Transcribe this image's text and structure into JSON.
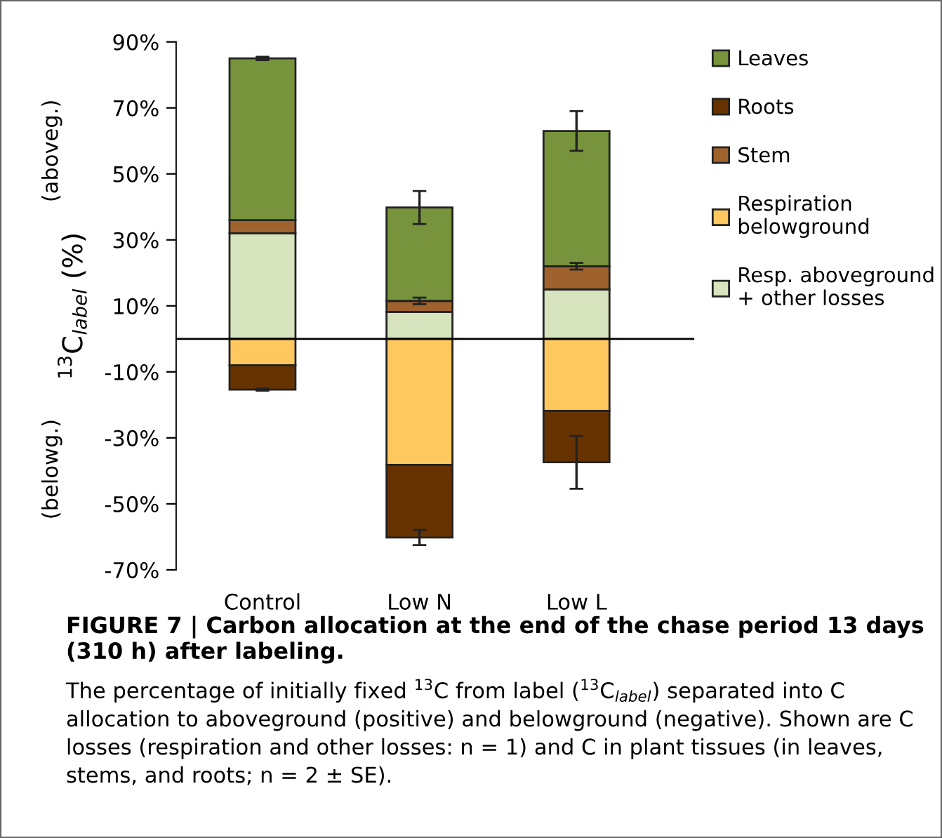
{
  "chart_data": {
    "type": "bar",
    "stacked": true,
    "title": "FIGURE 7 | Carbon allocation at the end of the chase period 13 days (310 h) after labeling.",
    "ylabel": "$^{13}$C$_{label}$ (%)",
    "categories": [
      "Control",
      "Low N",
      "Low L"
    ],
    "series": [
      {
        "name": "Resp. aboveground\n+ other losses",
        "color": "#d7e4bd",
        "values": [
          32,
          8.2,
          15
        ]
      },
      {
        "name": "Respiration\nbelowground",
        "color": "#ffc85f",
        "values": [
          -8,
          -38.2,
          -21.8
        ]
      },
      {
        "name": "Stem",
        "color": "#a0622d",
        "values": [
          4,
          3.3,
          7
        ],
        "errors": [
          null,
          1,
          1
        ]
      },
      {
        "name": "Roots",
        "color": "#663300",
        "values": [
          -7.4,
          -22,
          -15.6
        ],
        "errors": [
          0.3,
          2.3,
          8
        ]
      },
      {
        "name": "Leaves",
        "color": "#77933c",
        "values": [
          49,
          28.3,
          41
        ],
        "errors": [
          0.5,
          5,
          6
        ]
      }
    ],
    "ylim": [
      -70,
      90
    ],
    "yticks": [
      {
        "value": 90,
        "label": "90%"
      },
      {
        "value": 70,
        "label": "70%"
      },
      {
        "value": 50,
        "label": "50%"
      },
      {
        "value": 30,
        "label": "30%"
      },
      {
        "value": 10,
        "label": "10%"
      },
      {
        "value": -10,
        "label": "-10%"
      },
      {
        "value": -30,
        "label": "-30%"
      },
      {
        "value": -50,
        "label": "-50%"
      },
      {
        "value": -70,
        "label": "-70%"
      }
    ],
    "ref_lines": [
      {
        "axis": "y",
        "value": 0,
        "color": "#000000"
      }
    ],
    "annotations": [
      "(aboveg.)",
      "(belowg.)",
      "The percentage of initially fixed $^{13}$C from label ($^{13}$C$_{label}$) separated into C allocation to aboveground (positive) and belowground (negative). Shown are C losses (respiration and other losses: n = 1) and C in plant tissues (in leaves, stems, and roots; n = 2 ± SE)."
    ],
    "legend": "right",
    "grid": false
  }
}
